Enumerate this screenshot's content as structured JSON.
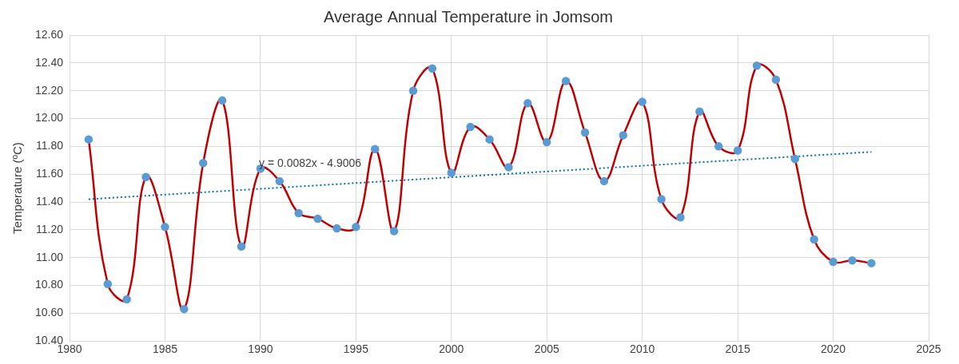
{
  "chart_data": {
    "type": "line",
    "title": "Average Annual Temperature in Jomsom",
    "y_label": "Temperature (ºC)",
    "annotations": [
      "y = 0.0082x - 4.9006"
    ],
    "grid": true,
    "xlim": [
      1980,
      2025
    ],
    "xticks": [
      1980,
      1985,
      1990,
      1995,
      2000,
      2005,
      2010,
      2015,
      2020,
      2025
    ],
    "ylim": [
      10.4,
      12.6
    ],
    "yticks": [
      {
        "value": 10.4,
        "label": "10.40"
      },
      {
        "value": 10.6,
        "label": "10.60"
      },
      {
        "value": 10.8,
        "label": "10.80"
      },
      {
        "value": 11.0,
        "label": "11.00"
      },
      {
        "value": 11.2,
        "label": "11.20"
      },
      {
        "value": 11.4,
        "label": "11.40"
      },
      {
        "value": 11.6,
        "label": "11.60"
      },
      {
        "value": 11.8,
        "label": "11.80"
      },
      {
        "value": 12.0,
        "label": "12.00"
      },
      {
        "value": 12.2,
        "label": "12.20"
      },
      {
        "value": 12.4,
        "label": "12.40"
      },
      {
        "value": 12.6,
        "label": "12.60"
      }
    ],
    "series": [
      {
        "color": "#c00000",
        "line_style": "smooth",
        "marker": "circle",
        "x": [
          1981,
          1982,
          1983,
          1984,
          1985,
          1986,
          1987,
          1988,
          1989,
          1990,
          1991,
          1992,
          1993,
          1994,
          1995,
          1996,
          1997,
          1998,
          1999,
          2000,
          2001,
          2002,
          2003,
          2004,
          2005,
          2006,
          2007,
          2008,
          2009,
          2010,
          2011,
          2012,
          2013,
          2014,
          2015,
          2016,
          2017,
          2018,
          2019,
          2020,
          2021,
          2022
        ],
        "values": [
          11.85,
          10.81,
          10.7,
          11.58,
          11.22,
          10.63,
          11.68,
          12.13,
          11.08,
          11.64,
          11.55,
          11.32,
          11.28,
          11.21,
          11.22,
          11.78,
          11.19,
          12.2,
          12.36,
          11.61,
          11.94,
          11.85,
          11.65,
          12.11,
          11.83,
          12.27,
          11.9,
          11.55,
          11.88,
          12.12,
          11.42,
          11.29,
          12.05,
          11.8,
          11.77,
          12.38,
          12.28,
          11.71,
          11.13,
          10.97,
          10.98,
          10.96
        ]
      },
      {
        "color": "#0070c0",
        "line_style": "dotted",
        "marker": "none",
        "x": [
          1981,
          2022
        ],
        "values": [
          11.42,
          11.76
        ]
      }
    ]
  }
}
